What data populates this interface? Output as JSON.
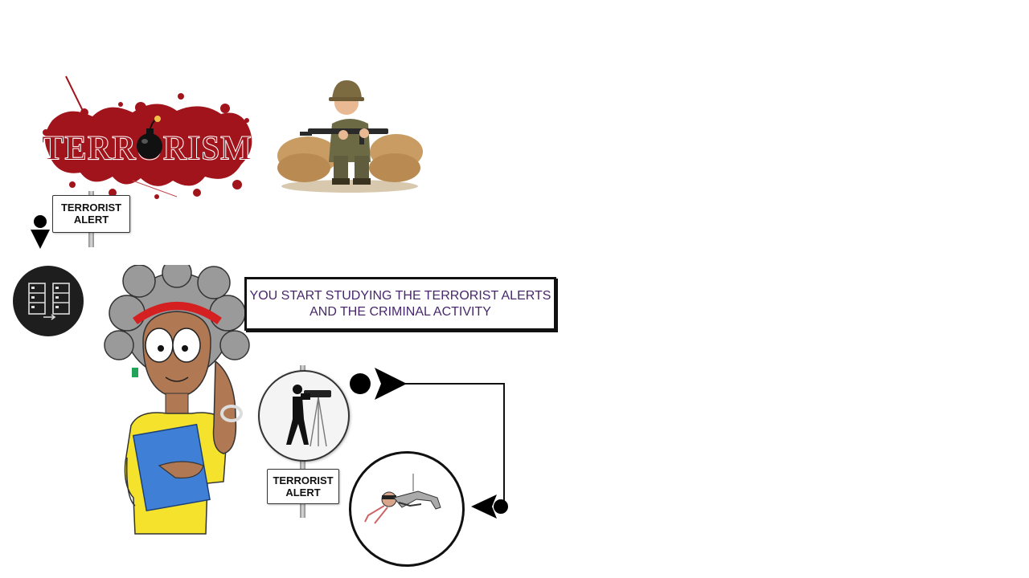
{
  "scene": {
    "terrorism_logo_text": "TERRORISM",
    "top_sign": {
      "line1": "TERRORIST",
      "line2": "ALERT"
    },
    "bottom_sign": {
      "line1": "TERRORIST",
      "line2": "ALERT"
    },
    "caption": {
      "line1": "YOU START STUDYING THE TERRORIST ALERTS",
      "line2": "AND THE CRIMINAL ACTIVITY"
    }
  },
  "icons": [
    "bomb-icon",
    "soldier-illustration",
    "arrow-down-icon",
    "server-icon",
    "woman-illustration",
    "surveillance-camera-icon",
    "arrow-right-icon",
    "arrow-left-icon",
    "thief-illustration"
  ],
  "colors": {
    "blood": "#a1141c",
    "caption_text": "#47286b",
    "badge_bg": "#1e1e1e"
  }
}
